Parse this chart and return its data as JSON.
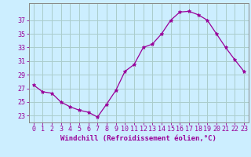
{
  "x": [
    0,
    1,
    2,
    3,
    4,
    5,
    6,
    7,
    8,
    9,
    10,
    11,
    12,
    13,
    14,
    15,
    16,
    17,
    18,
    19,
    20,
    21,
    22,
    23
  ],
  "y": [
    27.5,
    26.5,
    26.3,
    25.0,
    24.3,
    23.8,
    23.5,
    22.8,
    24.7,
    26.7,
    29.5,
    30.5,
    33.0,
    33.5,
    35.0,
    37.0,
    38.2,
    38.3,
    37.8,
    37.0,
    35.0,
    33.0,
    31.2,
    29.5
  ],
  "line_color": "#990099",
  "marker": "*",
  "bg_color": "#cceeff",
  "grid_color": "#aacccc",
  "xlabel": "Windchill (Refroidissement éolien,°C)",
  "xlim": [
    -0.5,
    23.5
  ],
  "ylim": [
    22.0,
    39.5
  ],
  "yticks": [
    23,
    25,
    27,
    29,
    31,
    33,
    35,
    37
  ],
  "xticks": [
    0,
    1,
    2,
    3,
    4,
    5,
    6,
    7,
    8,
    9,
    10,
    11,
    12,
    13,
    14,
    15,
    16,
    17,
    18,
    19,
    20,
    21,
    22,
    23
  ],
  "tick_color": "#990099",
  "label_fontsize": 6.5,
  "tick_fontsize": 6.0,
  "spine_color": "#888888"
}
